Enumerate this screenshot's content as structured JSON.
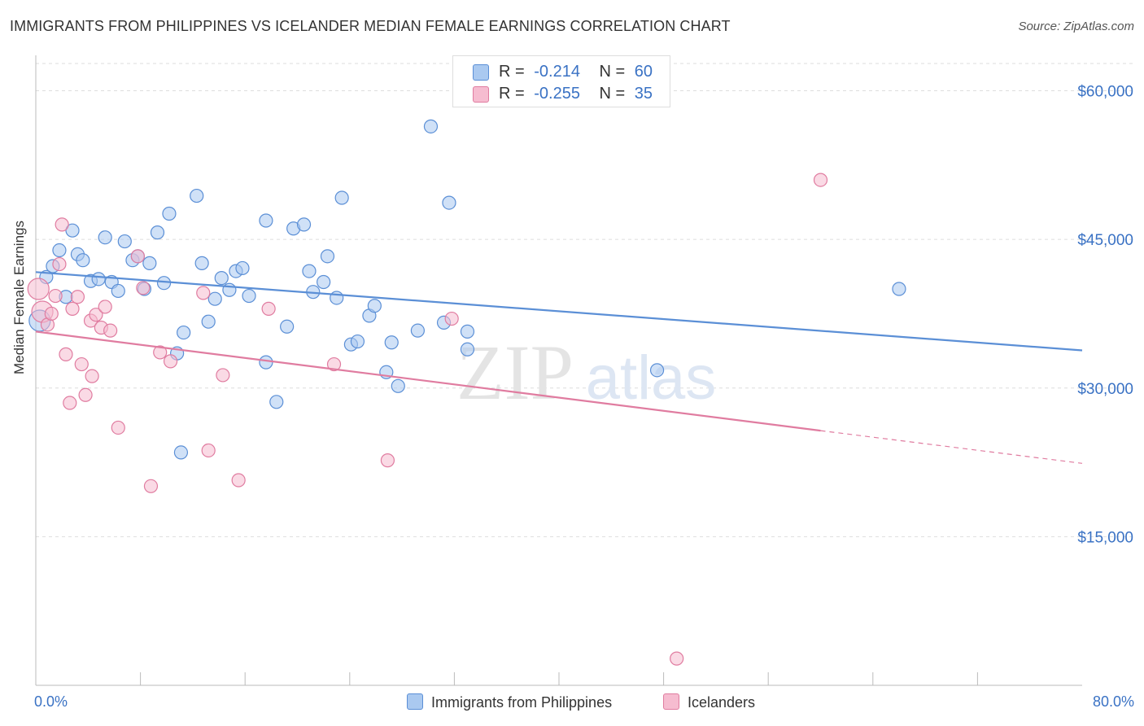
{
  "header": {
    "title": "IMMIGRANTS FROM PHILIPPINES VS ICELANDER MEDIAN FEMALE EARNINGS CORRELATION CHART",
    "source": "Source: ZipAtlas.com"
  },
  "legend": {
    "rows": [
      {
        "r_label": "R =",
        "r_value": "-0.214",
        "n_label": "N =",
        "n_value": "60",
        "color": "#aac9f0",
        "stroke": "#5b8fd6"
      },
      {
        "r_label": "R =",
        "r_value": "-0.255",
        "n_label": "N =",
        "n_value": "35",
        "color": "#f6bcd0",
        "stroke": "#e07ca0"
      }
    ]
  },
  "bottom_legend": [
    {
      "label": "Immigrants from Philippines",
      "color": "#aac9f0",
      "stroke": "#5b8fd6"
    },
    {
      "label": "Icelanders",
      "color": "#f6bcd0",
      "stroke": "#e07ca0"
    }
  ],
  "chart_data": {
    "type": "scatter",
    "title": "IMMIGRANTS FROM PHILIPPINES VS ICELANDER MEDIAN FEMALE EARNINGS CORRELATION CHART",
    "xlabel": "",
    "ylabel": "Median Female Earnings",
    "xlim": [
      0,
      80
    ],
    "ylim": [
      0,
      63000
    ],
    "x_tick_labels": [
      "0.0%",
      "80.0%"
    ],
    "y_ticks": [
      15000,
      30000,
      45000,
      60000
    ],
    "y_tick_labels": [
      "$15,000",
      "$30,000",
      "$45,000",
      "$60,000"
    ],
    "grid": true,
    "watermark": "ZIPatlas",
    "series": [
      {
        "name": "Immigrants from Philippines",
        "color": "#5b8fd6",
        "fill": "#aac9f0",
        "trend": {
          "x0": 0,
          "y0": 41700,
          "x1": 80,
          "y1": 33800
        },
        "points": [
          [
            0.3,
            36800
          ],
          [
            0.8,
            41200
          ],
          [
            1.3,
            42300
          ],
          [
            1.8,
            43900
          ],
          [
            2.3,
            39200
          ],
          [
            2.8,
            45900
          ],
          [
            3.2,
            43500
          ],
          [
            3.6,
            42900
          ],
          [
            4.2,
            40800
          ],
          [
            4.8,
            41000
          ],
          [
            5.3,
            45200
          ],
          [
            5.8,
            40700
          ],
          [
            6.3,
            39800
          ],
          [
            6.8,
            44800
          ],
          [
            7.4,
            42900
          ],
          [
            7.8,
            43300
          ],
          [
            8.3,
            40000
          ],
          [
            8.7,
            42600
          ],
          [
            9.3,
            45700
          ],
          [
            9.8,
            40600
          ],
          [
            10.2,
            47600
          ],
          [
            10.8,
            33500
          ],
          [
            11.3,
            35600
          ],
          [
            12.3,
            49400
          ],
          [
            12.7,
            42600
          ],
          [
            13.2,
            36700
          ],
          [
            13.7,
            39000
          ],
          [
            14.2,
            41100
          ],
          [
            14.8,
            39900
          ],
          [
            15.3,
            41800
          ],
          [
            15.8,
            42100
          ],
          [
            16.3,
            39300
          ],
          [
            17.6,
            46900
          ],
          [
            17.6,
            32600
          ],
          [
            18.4,
            28600
          ],
          [
            19.2,
            36200
          ],
          [
            19.7,
            46100
          ],
          [
            20.5,
            46500
          ],
          [
            20.9,
            41800
          ],
          [
            21.2,
            39700
          ],
          [
            22.0,
            40700
          ],
          [
            22.3,
            43300
          ],
          [
            23.0,
            39100
          ],
          [
            23.4,
            49200
          ],
          [
            24.1,
            34400
          ],
          [
            24.6,
            34700
          ],
          [
            25.5,
            37300
          ],
          [
            25.9,
            38300
          ],
          [
            26.8,
            31600
          ],
          [
            27.2,
            34600
          ],
          [
            27.7,
            30200
          ],
          [
            29.2,
            35800
          ],
          [
            30.2,
            56400
          ],
          [
            31.2,
            36600
          ],
          [
            31.6,
            48700
          ],
          [
            33.0,
            35700
          ],
          [
            33.0,
            33900
          ],
          [
            11.1,
            23500
          ],
          [
            47.5,
            31800
          ],
          [
            66.0,
            40000
          ]
        ]
      },
      {
        "name": "Icelanders",
        "color": "#e07ca0",
        "fill": "#f6bcd0",
        "trend": {
          "x0": 0,
          "y0": 35700,
          "x1": 60,
          "y1": 25700
        },
        "trend_dashed": {
          "x0": 60,
          "y0": 25700,
          "x1": 80,
          "y1": 22400
        },
        "points": [
          [
            0.2,
            40000
          ],
          [
            0.5,
            37700
          ],
          [
            0.9,
            36400
          ],
          [
            1.2,
            37500
          ],
          [
            1.5,
            39300
          ],
          [
            1.8,
            42500
          ],
          [
            2.0,
            46500
          ],
          [
            2.3,
            33400
          ],
          [
            2.6,
            28500
          ],
          [
            2.8,
            38000
          ],
          [
            3.2,
            39200
          ],
          [
            3.5,
            32400
          ],
          [
            3.8,
            29300
          ],
          [
            4.2,
            36800
          ],
          [
            4.3,
            31200
          ],
          [
            4.6,
            37400
          ],
          [
            5.0,
            36100
          ],
          [
            5.3,
            38200
          ],
          [
            5.7,
            35800
          ],
          [
            6.3,
            26000
          ],
          [
            7.8,
            43300
          ],
          [
            8.2,
            40100
          ],
          [
            8.8,
            20100
          ],
          [
            9.5,
            33600
          ],
          [
            10.3,
            32700
          ],
          [
            12.8,
            39600
          ],
          [
            13.2,
            23700
          ],
          [
            14.3,
            31300
          ],
          [
            15.5,
            20700
          ],
          [
            17.8,
            38000
          ],
          [
            22.8,
            32400
          ],
          [
            26.9,
            22700
          ],
          [
            31.8,
            37000
          ],
          [
            49.0,
            2700
          ],
          [
            60.0,
            51000
          ]
        ]
      }
    ]
  }
}
